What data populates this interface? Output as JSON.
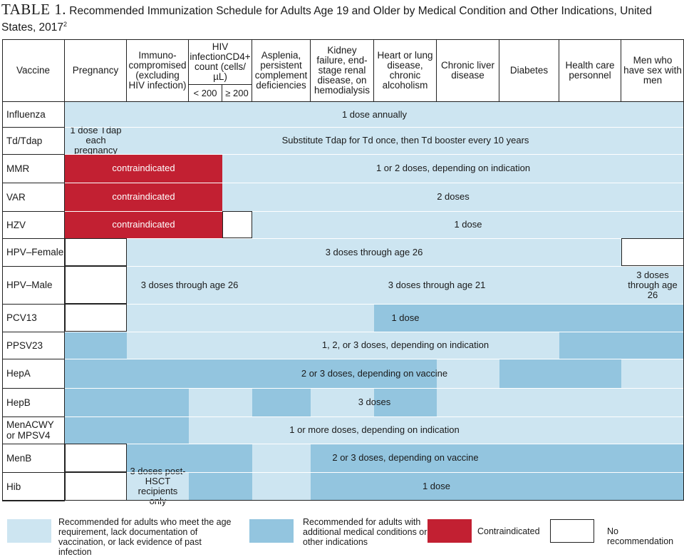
{
  "title": {
    "label": "TABLE 1.",
    "text": "Recommended Immunization Schedule for Adults Age 19 and Older by Medical Condition and Other Indications, United States, 2017",
    "superscript": "2"
  },
  "colors": {
    "light": "#cde5f1",
    "medium": "#93c5df",
    "contraindicated": "#c22032",
    "none": "#ffffff",
    "border": "#222222"
  },
  "columns": [
    {
      "label": "Vaccine"
    },
    {
      "label": "Pregnancy"
    },
    {
      "label": "Immuno-compromised (excluding HIV infection)"
    },
    {
      "label": "HIV infectionCD4+ count (cells/µL)",
      "sub": [
        "< 200",
        "≥ 200"
      ]
    },
    {
      "label": "Asplenia, persistent complement deficiencies"
    },
    {
      "label": "Kidney failure, end-stage renal disease, on hemodialysis"
    },
    {
      "label": "Heart or lung disease, chronic alcoholism"
    },
    {
      "label": "Chronic liver disease"
    },
    {
      "label": "Diabetes"
    },
    {
      "label": "Health care personnel"
    },
    {
      "label": "Men who have sex with men"
    }
  ],
  "rows": [
    {
      "name": "Influenza",
      "fills": [
        "light",
        "light",
        "light",
        "light",
        "light",
        "light",
        "light",
        "light",
        "light",
        "light",
        "light"
      ],
      "texts": [
        {
          "text": "1 dose annually",
          "from": 0,
          "to": 10
        }
      ]
    },
    {
      "name": "Td/Tdap",
      "fills": [
        "light",
        "light",
        "light",
        "light",
        "light",
        "light",
        "light",
        "light",
        "light",
        "light",
        "light"
      ],
      "texts": [
        {
          "text": "1 dose Tdap each pregnancy",
          "from": 0,
          "to": 0
        },
        {
          "text": "Substitute Tdap for Td once, then Td booster every 10 years",
          "from": 1,
          "to": 10
        }
      ]
    },
    {
      "name": "MMR",
      "fills": [
        "red",
        "red",
        "red",
        "light",
        "light",
        "light",
        "light",
        "light",
        "light",
        "light",
        "light"
      ],
      "texts": [
        {
          "text": "contraindicated",
          "from": 0,
          "to": 2,
          "white": true
        },
        {
          "text": "1 or 2 doses, depending on indication",
          "from": 3,
          "to": 10
        }
      ]
    },
    {
      "name": "VAR",
      "fills": [
        "red",
        "red",
        "red",
        "light",
        "light",
        "light",
        "light",
        "light",
        "light",
        "light",
        "light"
      ],
      "texts": [
        {
          "text": "contraindicated",
          "from": 0,
          "to": 2,
          "white": true
        },
        {
          "text": "2 doses",
          "from": 3,
          "to": 10
        }
      ]
    },
    {
      "name": "HZV",
      "fills": [
        "red",
        "red",
        "red",
        "none",
        "light",
        "light",
        "light",
        "light",
        "light",
        "light",
        "light"
      ],
      "texts": [
        {
          "text": "contraindicated",
          "from": 0,
          "to": 2,
          "white": true
        },
        {
          "text": "1 dose",
          "from": 4,
          "to": 10
        }
      ]
    },
    {
      "name": "HPV–Female",
      "fills": [
        "none",
        "light",
        "light",
        "light",
        "light",
        "light",
        "light",
        "light",
        "light",
        "light",
        "none"
      ],
      "texts": [
        {
          "text": "3 doses through age 26",
          "from": 1,
          "to": 9
        }
      ]
    },
    {
      "name": "HPV–Male",
      "fills": [
        "none",
        "light",
        "light",
        "light",
        "light",
        "light",
        "light",
        "light",
        "light",
        "light",
        "light"
      ],
      "texts": [
        {
          "text": "3 doses through age 26",
          "from": 1,
          "to": 3
        },
        {
          "text": "3 doses through age 21",
          "from": 4,
          "to": 9
        },
        {
          "text": "3 doses through age 26",
          "from": 10,
          "to": 10
        }
      ]
    },
    {
      "name": "PCV13",
      "fills": [
        "none",
        "light",
        "light",
        "light",
        "light",
        "light",
        "medium",
        "medium",
        "medium",
        "medium",
        "medium"
      ],
      "texts": [
        {
          "text": "1 dose",
          "from": 1,
          "to": 10
        }
      ]
    },
    {
      "name": "PPSV23",
      "fills": [
        "medium",
        "light",
        "light",
        "light",
        "light",
        "light",
        "light",
        "light",
        "light",
        "medium",
        "medium"
      ],
      "texts": [
        {
          "text": "1, 2, or 3 doses, depending on indication",
          "from": 1,
          "to": 10
        }
      ]
    },
    {
      "name": "HepA",
      "fills": [
        "medium",
        "medium",
        "medium",
        "medium",
        "medium",
        "medium",
        "medium",
        "light",
        "medium",
        "medium",
        "light"
      ],
      "texts": [
        {
          "text": "2 or 3 doses, depending on vaccine",
          "from": 0,
          "to": 10
        }
      ]
    },
    {
      "name": "HepB",
      "fills": [
        "medium",
        "medium",
        "light",
        "light",
        "medium",
        "light",
        "medium",
        "light",
        "light",
        "light",
        "light"
      ],
      "texts": [
        {
          "text": "3 doses",
          "from": 0,
          "to": 10
        }
      ]
    },
    {
      "name": "MenACWY or MPSV4",
      "fills": [
        "medium",
        "medium",
        "light",
        "light",
        "light",
        "light",
        "light",
        "light",
        "light",
        "light",
        "light"
      ],
      "texts": [
        {
          "text": "1 or more doses, depending on indication",
          "from": 0,
          "to": 10
        }
      ]
    },
    {
      "name": "MenB",
      "fills": [
        "none",
        "medium",
        "medium",
        "medium",
        "light",
        "medium",
        "medium",
        "medium",
        "medium",
        "medium",
        "medium"
      ],
      "texts": [
        {
          "text": "2 or 3 doses, depending on vaccine",
          "from": 1,
          "to": 10
        }
      ]
    },
    {
      "name": "Hib",
      "fills": [
        "none",
        "light",
        "medium",
        "medium",
        "light",
        "medium",
        "medium",
        "medium",
        "medium",
        "medium",
        "medium"
      ],
      "texts": [
        {
          "text": "3 doses post-HSCT recipients only",
          "from": 1,
          "to": 1
        },
        {
          "text": "1 dose",
          "from": 2,
          "to": 10
        }
      ]
    }
  ],
  "legend": [
    {
      "fill": "light",
      "text": "Recommended for adults who meet the age requirement, lack documentation of vaccination, or lack evidence of past infection"
    },
    {
      "fill": "medium",
      "text": "Recommended for adults with additional medical conditions or other indications"
    },
    {
      "fill": "red",
      "text": "Contraindicated"
    },
    {
      "fill": "none",
      "text": "No recommendation"
    }
  ]
}
